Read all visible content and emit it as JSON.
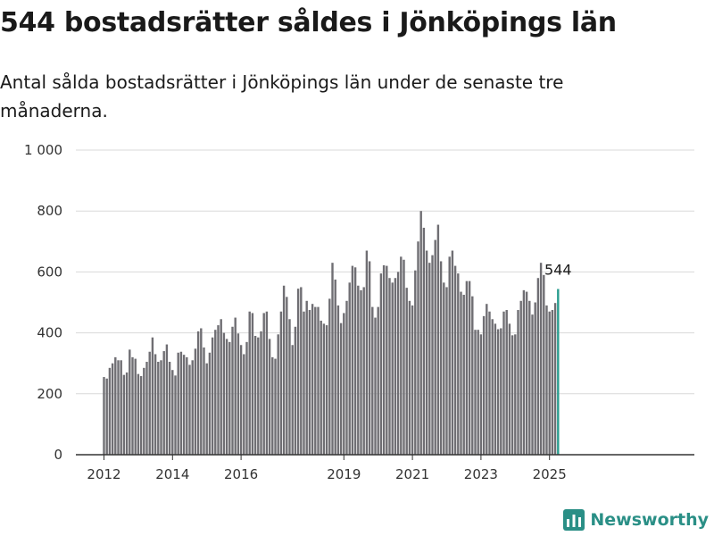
{
  "title": "544 bostadsrätter såldes i Jönköpings län",
  "subtitle": "Antal sålda bostadsrätter i Jönköpings län under de senaste tre månaderna.",
  "brand": "Newsworthy",
  "colors": {
    "bar": "#6f6e73",
    "highlight": "#2a9d8f",
    "grid": "#d9d9d9",
    "axis": "#333333",
    "brand": "#2a8f86"
  },
  "chart_data": {
    "type": "bar",
    "title": "544 bostadsrätter såldes i Jönköpings län",
    "subtitle": "Antal sålda bostadsrätter i Jönköpings län under de senaste tre månaderna.",
    "xlabel": "",
    "ylabel": "",
    "x_start": "2012-01",
    "ylim": [
      0,
      1000
    ],
    "yticks": [
      0,
      200,
      400,
      600,
      800,
      1000
    ],
    "ytick_labels": [
      "0",
      "200",
      "400",
      "600",
      "800",
      "1 000"
    ],
    "xticks": [
      "2012",
      "2014",
      "2016",
      "2019",
      "2021",
      "2023",
      "2025"
    ],
    "grid": true,
    "highlight_label": "544",
    "values": [
      255,
      250,
      285,
      300,
      320,
      310,
      310,
      262,
      270,
      345,
      320,
      315,
      265,
      258,
      285,
      305,
      338,
      385,
      330,
      305,
      310,
      340,
      362,
      305,
      278,
      260,
      335,
      338,
      328,
      320,
      295,
      310,
      348,
      405,
      415,
      352,
      300,
      335,
      385,
      410,
      425,
      445,
      400,
      380,
      370,
      420,
      450,
      398,
      360,
      330,
      370,
      470,
      465,
      390,
      385,
      405,
      465,
      470,
      380,
      320,
      315,
      395,
      470,
      555,
      518,
      445,
      360,
      420,
      545,
      550,
      470,
      505,
      475,
      495,
      485,
      485,
      440,
      430,
      425,
      512,
      630,
      575,
      490,
      432,
      465,
      505,
      565,
      620,
      615,
      555,
      540,
      550,
      670,
      635,
      485,
      450,
      485,
      595,
      622,
      620,
      580,
      565,
      580,
      600,
      650,
      640,
      548,
      505,
      490,
      605,
      700,
      800,
      745,
      670,
      630,
      655,
      705,
      755,
      635,
      565,
      550,
      650,
      670,
      620,
      595,
      535,
      525,
      570,
      570,
      520,
      410,
      410,
      395,
      455,
      495,
      470,
      445,
      430,
      412,
      415,
      470,
      475,
      430,
      392,
      395,
      475,
      505,
      540,
      535,
      505,
      460,
      500,
      580,
      630,
      590,
      490,
      470,
      475,
      498,
      544
    ]
  }
}
